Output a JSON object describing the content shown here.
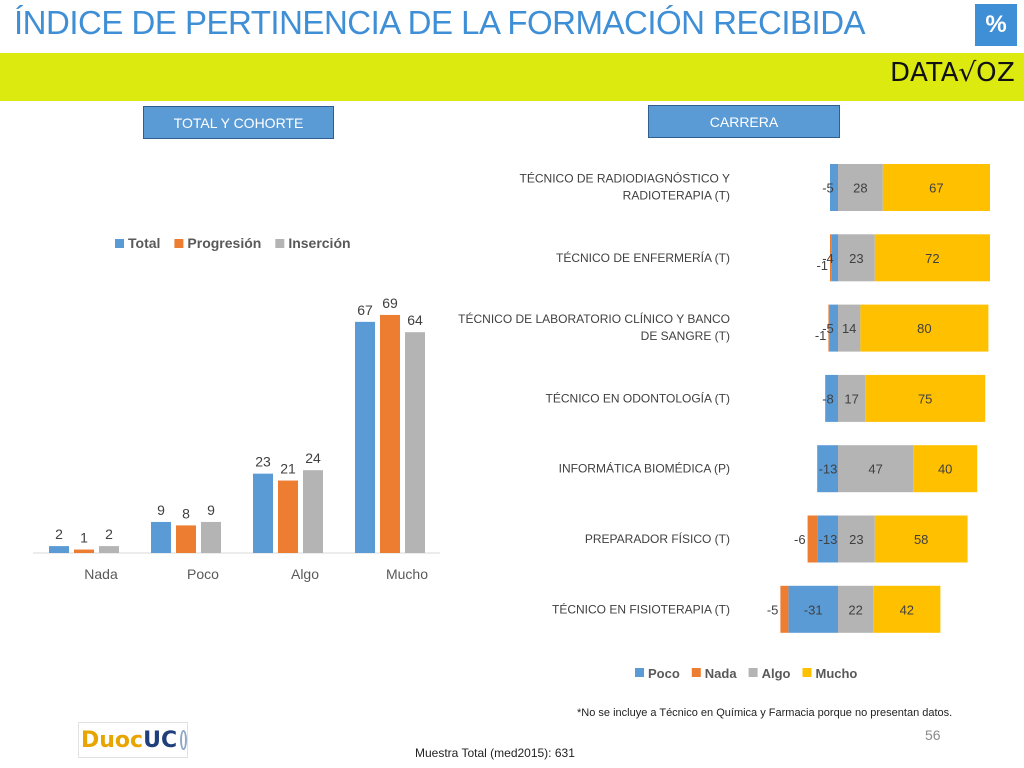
{
  "header": {
    "title": "ÍNDICE DE PERTINENCIA DE LA FORMACIÓN RECIBIDA",
    "badge": "%",
    "brand_logo_text_1": "DATA",
    "brand_logo_text_2": "OZ"
  },
  "sections": {
    "left_button": "TOTAL Y COHORTE",
    "right_button": "CARRERA"
  },
  "colors": {
    "title": "#3f8fd6",
    "band": "#ddea10",
    "total": "#5b9bd5",
    "progresion": "#ed7d31",
    "insercion": "#b4b4b4",
    "poco": "#5b9bd5",
    "nada": "#ed7d31",
    "algo": "#b4b4b4",
    "mucho": "#ffc000"
  },
  "chart_data": [
    {
      "type": "bar",
      "categories": [
        "Nada",
        "Poco",
        "Algo",
        "Mucho"
      ],
      "series": [
        {
          "name": "Total",
          "values": [
            2,
            9,
            23,
            67
          ]
        },
        {
          "name": "Progresión",
          "values": [
            1,
            8,
            21,
            69
          ]
        },
        {
          "name": "Inserción",
          "values": [
            2,
            9,
            24,
            64
          ]
        }
      ],
      "ylim": [
        0,
        75
      ],
      "legend": "top",
      "grid": false
    },
    {
      "type": "bar",
      "orientation": "horizontal",
      "stacked": "diverging",
      "categories": [
        [
          "TÉCNICO DE RADIODIAGNÓSTICO Y",
          "RADIOTERAPIA (T)"
        ],
        [
          "TÉCNICO DE ENFERMERÍA (T)"
        ],
        [
          "TÉCNICO DE LABORATORIO CLÍNICO Y BANCO",
          "DE SANGRE (T)"
        ],
        [
          "TÉCNICO EN ODONTOLOGÍA (T)"
        ],
        [
          "INFORMÁTICA BIOMÉDICA (P)"
        ],
        [
          "PREPARADOR FÍSICO (T)"
        ],
        [
          "TÉCNICO EN FISIOTERAPIA (T)"
        ]
      ],
      "series": [
        {
          "name": "Poco",
          "values": [
            -5,
            -4,
            -5,
            -8,
            -13,
            -13,
            -31
          ]
        },
        {
          "name": "Nada",
          "values": [
            null,
            -1,
            -1,
            null,
            null,
            -6,
            -5
          ]
        },
        {
          "name": "Algo",
          "values": [
            28,
            23,
            14,
            17,
            47,
            23,
            22
          ]
        },
        {
          "name": "Mucho",
          "values": [
            67,
            72,
            80,
            75,
            40,
            58,
            42
          ]
        }
      ],
      "xlim": [
        -42,
        100
      ],
      "legend": "bottom",
      "grid": false
    }
  ],
  "footer": {
    "footnote": "*No se incluye a  Técnico en Química y Farmacia porque no presentan datos.",
    "page_number": "56",
    "sample": "Muestra Total (med2015): 631",
    "duoc_text_1": "Duoc",
    "duoc_text_2": "UC"
  }
}
